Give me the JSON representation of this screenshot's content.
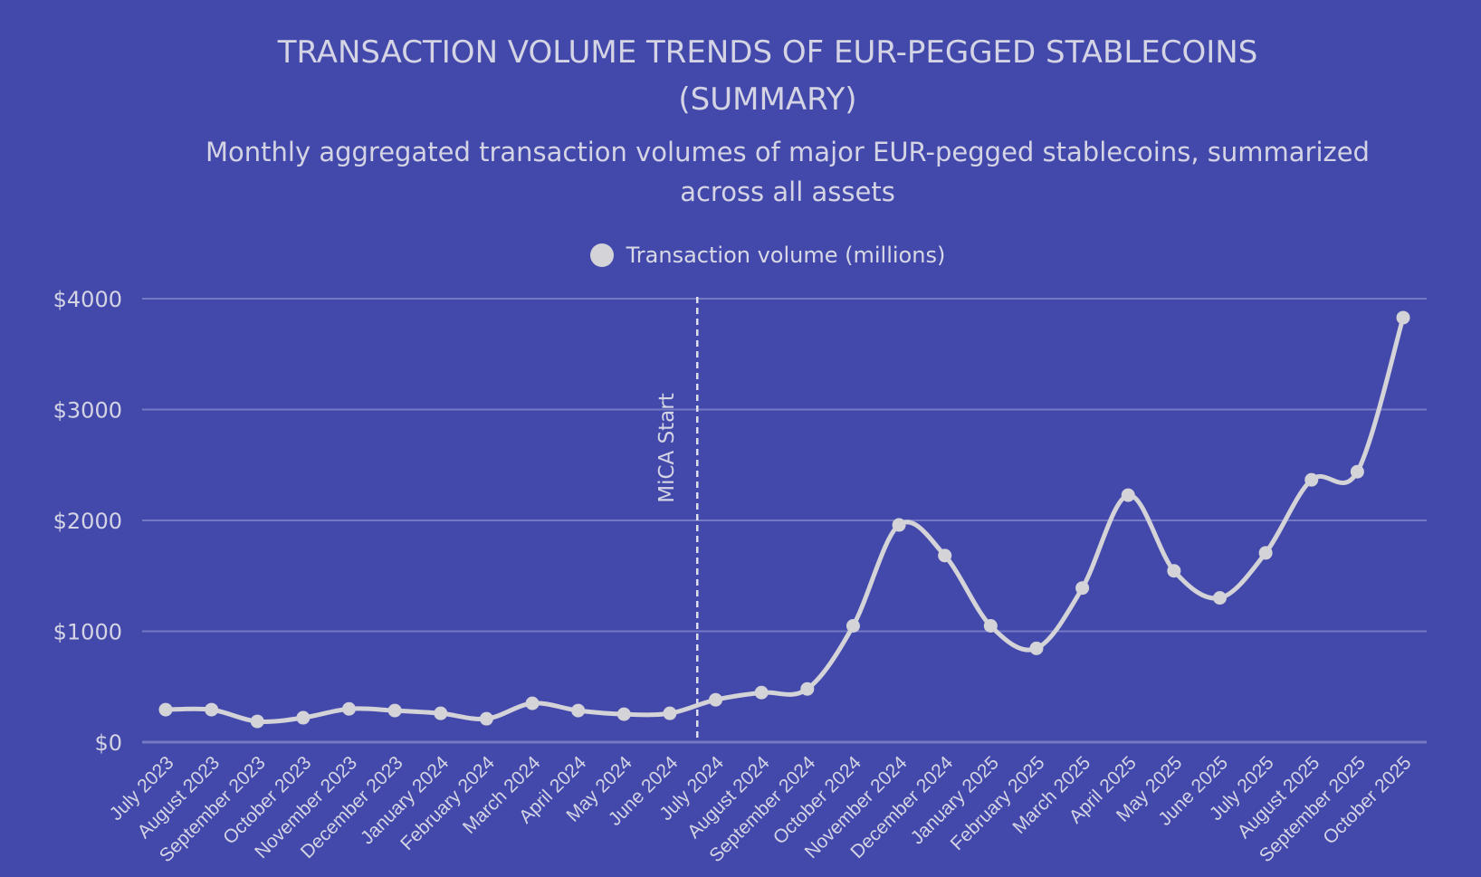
{
  "chart_data": {
    "type": "line",
    "title": "TRANSACTION VOLUME TRENDS OF EUR-PEGGED STABLECOINS (SUMMARY)",
    "title_lines": [
      "TRANSACTION VOLUME TRENDS OF EUR-PEGGED STABLECOINS",
      "(SUMMARY)"
    ],
    "subtitle": "Monthly aggregated transaction volumes of major EUR-pegged stablecoins, summarized across all assets",
    "subtitle_lines": [
      "Monthly aggregated transaction volumes of major EUR-pegged stablecoins, summarized",
      "across all assets"
    ],
    "legend_position": "top-center",
    "grid": true,
    "ylim": [
      0,
      4000
    ],
    "yticks": [
      0,
      1000,
      2000,
      3000,
      4000
    ],
    "ytick_labels": [
      "$0",
      "$1000",
      "$2000",
      "$3000",
      "$4000"
    ],
    "categories": [
      "July 2023",
      "August 2023",
      "September 2023",
      "October 2023",
      "November 2023",
      "December 2023",
      "January 2024",
      "February 2024",
      "March 2024",
      "April 2024",
      "May 2024",
      "June 2024",
      "July 2024",
      "August 2024",
      "September 2024",
      "October 2024",
      "November 2024",
      "December 2024",
      "January 2025",
      "February 2025",
      "March 2025",
      "April 2025",
      "May 2025",
      "June 2025",
      "July 2025",
      "August 2025",
      "September 2025",
      "October 2025"
    ],
    "series": [
      {
        "name": "Transaction volume (millions)",
        "color": "#d3d3d8",
        "values": [
          293,
          293,
          187,
          220,
          300,
          285,
          260,
          211,
          350,
          285,
          252,
          260,
          382,
          447,
          480,
          1049,
          1959,
          1683,
          1049,
          846,
          1390,
          2228,
          1545,
          1301,
          1707,
          2366,
          2439,
          3829
        ]
      }
    ],
    "annotations": [
      {
        "label": "MiCA Start",
        "between": [
          "June 2024",
          "July 2024"
        ],
        "style": "dashed-vertical"
      }
    ],
    "colors": {
      "background": "#4349ab",
      "grid": "#7479c4",
      "line": "#d3d3d8"
    }
  }
}
